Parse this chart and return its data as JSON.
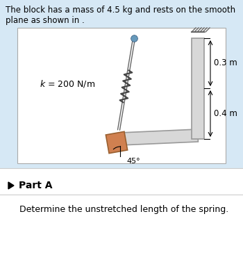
{
  "title_text": "The block has a mass of 4.5 kg and rests on the smooth\nplane as shown in .",
  "title_fontsize": 8.5,
  "bg_outer": "#d6e8f5",
  "bg_inner": "#ffffff",
  "bg_bottom": "#f0f0f0",
  "part_a_text": "Part A",
  "question_text": "Determine the unstretched length of the spring.",
  "k_label": "$k$ = 200 N/m",
  "dim1": "0.3 m",
  "dim2": "0.4 m",
  "angle_label": "45°",
  "block_face": "#d08050",
  "block_edge": "#996030",
  "spring_color": "#444444",
  "rod_color": "#666666",
  "ramp_face": "#d8d8d8",
  "ramp_edge": "#999999",
  "pin_color": "#6699bb",
  "wall_face": "#cccccc",
  "wall_edge": "#888888",
  "hatch_color": "#666666"
}
